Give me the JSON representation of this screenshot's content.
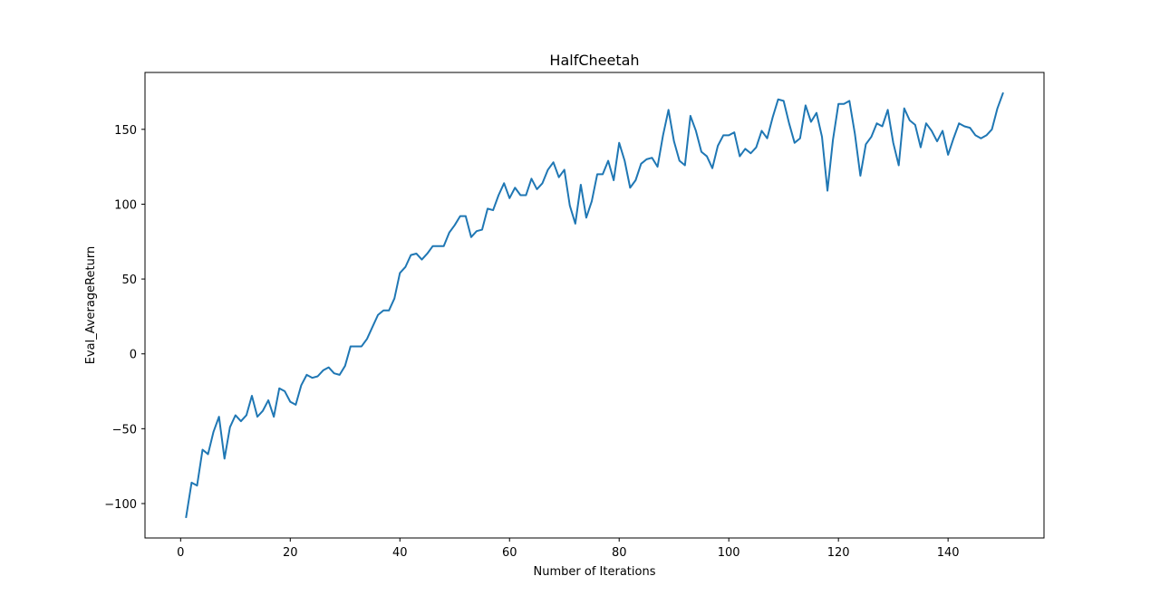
{
  "chart_data": {
    "type": "line",
    "title": "HalfCheetah",
    "xlabel": "Number of Iterations",
    "ylabel": "Eval_AverageReturn",
    "xlim": [
      -6.5,
      157.5
    ],
    "ylim": [
      -123,
      188
    ],
    "xticks": [
      0,
      20,
      40,
      60,
      80,
      100,
      120,
      140
    ],
    "xtick_labels": [
      "0",
      "20",
      "40",
      "60",
      "80",
      "100",
      "120",
      "140"
    ],
    "yticks": [
      -100,
      -50,
      0,
      50,
      100,
      150
    ],
    "ytick_labels": [
      "−100",
      "−50",
      "0",
      "50",
      "100",
      "150"
    ],
    "grid": false,
    "legend": false,
    "line_color": "#1f77b4",
    "series": [
      {
        "x": [
          1,
          2,
          3,
          4,
          5,
          6,
          7,
          8,
          9,
          10,
          11,
          12,
          13,
          14,
          15,
          16,
          17,
          18,
          19,
          20,
          21,
          22,
          23,
          24,
          25,
          26,
          27,
          28,
          29,
          30,
          31,
          32,
          33,
          34,
          35,
          36,
          37,
          38,
          39,
          40,
          41,
          42,
          43,
          44,
          45,
          46,
          47,
          48,
          49,
          50,
          51,
          52,
          53,
          54,
          55,
          56,
          57,
          58,
          59,
          60,
          61,
          62,
          63,
          64,
          65,
          66,
          67,
          68,
          69,
          70,
          71,
          72,
          73,
          74,
          75,
          76,
          77,
          78,
          79,
          80,
          81,
          82,
          83,
          84,
          85,
          86,
          87,
          88,
          89,
          90,
          91,
          92,
          93,
          94,
          95,
          96,
          97,
          98,
          99,
          100,
          101,
          102,
          103,
          104,
          105,
          106,
          107,
          108,
          109,
          110,
          111,
          112,
          113,
          114,
          115,
          116,
          117,
          118,
          119,
          120,
          121,
          122,
          123,
          124,
          125,
          126,
          127,
          128,
          129,
          130,
          131,
          132,
          133,
          134,
          135,
          136,
          137,
          138,
          139,
          140,
          141,
          142,
          143,
          144,
          145,
          146,
          147,
          148,
          149,
          150
        ],
        "y": [
          -109,
          -86,
          -88,
          -64,
          -67,
          -52,
          -42,
          -70,
          -49,
          -41,
          -45,
          -41,
          -28,
          -42,
          -38,
          -31,
          -42,
          -23,
          -25,
          -32,
          -34,
          -21,
          -14,
          -16,
          -15,
          -11,
          -9,
          -13,
          -14,
          -8,
          5,
          5,
          5,
          10,
          18,
          26,
          29,
          29,
          37,
          54,
          58,
          66,
          67,
          63,
          67,
          72,
          72,
          72,
          81,
          86,
          92,
          92,
          78,
          82,
          83,
          97,
          96,
          106,
          114,
          104,
          111,
          106,
          106,
          117,
          110,
          114,
          123,
          128,
          118,
          123,
          99,
          87,
          113,
          91,
          102,
          120,
          120,
          129,
          116,
          141,
          129,
          111,
          116,
          127,
          130,
          131,
          125,
          146,
          163,
          142,
          129,
          126,
          159,
          149,
          135,
          132,
          124,
          139,
          146,
          146,
          148,
          132,
          137,
          134,
          138,
          149,
          144,
          158,
          170,
          169,
          154,
          141,
          144,
          166,
          155,
          161,
          145,
          109,
          143,
          167,
          167,
          169,
          147,
          119,
          140,
          145,
          154,
          152,
          163,
          141,
          126,
          164,
          156,
          153,
          138,
          154,
          149,
          142,
          149,
          133,
          144,
          154,
          152,
          151,
          146,
          144,
          146,
          150,
          164,
          174
        ]
      }
    ]
  }
}
